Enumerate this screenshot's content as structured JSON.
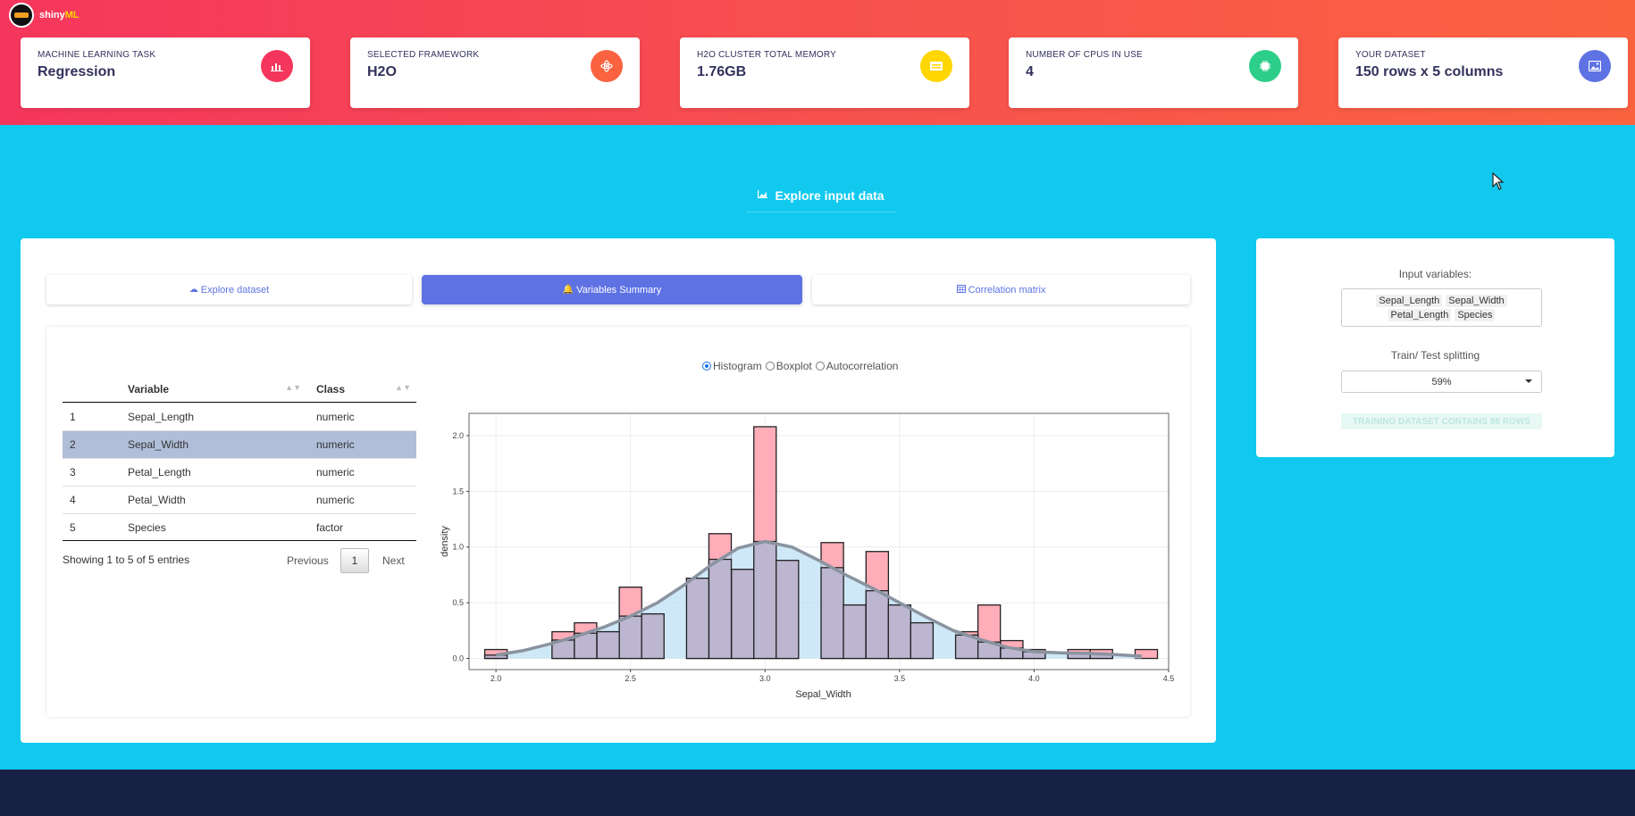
{
  "brand": {
    "name": "shiny",
    "accent": "ML"
  },
  "stats": [
    {
      "label": "MACHINE LEARNING TASK",
      "value": "Regression",
      "icon": "chart-bar-icon",
      "color": "#f5365c"
    },
    {
      "label": "SELECTED FRAMEWORK",
      "value": "H2O",
      "icon": "atom-icon",
      "color": "#fb6340"
    },
    {
      "label": "H2O CLUSTER TOTAL MEMORY",
      "value": "1.76GB",
      "icon": "memory-icon",
      "color": "#ffd600"
    },
    {
      "label": "NUMBER OF CPUS IN USE",
      "value": "4",
      "icon": "cpu-icon",
      "color": "#2dce89"
    },
    {
      "label": "YOUR DATASET",
      "value": "150 rows x 5 columns",
      "icon": "image-icon",
      "color": "#5e72e4"
    }
  ],
  "section": {
    "title": "Explore input data"
  },
  "tabs": [
    {
      "label": "Explore dataset",
      "icon": "cloud-upload-icon"
    },
    {
      "label": "Variables Summary",
      "icon": "bell-icon"
    },
    {
      "label": "Correlation matrix",
      "icon": "calendar-icon"
    }
  ],
  "table": {
    "columns": [
      "Variable",
      "Class"
    ],
    "rows": [
      {
        "idx": "1",
        "variable": "Sepal_Length",
        "class": "numeric"
      },
      {
        "idx": "2",
        "variable": "Sepal_Width",
        "class": "numeric"
      },
      {
        "idx": "3",
        "variable": "Petal_Length",
        "class": "numeric"
      },
      {
        "idx": "4",
        "variable": "Petal_Width",
        "class": "numeric"
      },
      {
        "idx": "5",
        "variable": "Species",
        "class": "factor"
      }
    ],
    "info": "Showing 1 to 5 of 5 entries",
    "prev": "Previous",
    "page": "1",
    "next": "Next"
  },
  "plot_options": {
    "histogram": "Histogram",
    "boxplot": "Boxplot",
    "autocorrelation": "Autocorrelation",
    "selected": "Histogram"
  },
  "chart_data": {
    "type": "bar",
    "xlabel": "Sepal_Width",
    "ylabel": "density",
    "xlim": [
      1.9,
      4.5
    ],
    "ylim": [
      -0.1,
      2.2
    ],
    "xticks": [
      "2.0",
      "2.5",
      "3.0",
      "3.5",
      "4.0",
      "4.5"
    ],
    "yticks": [
      "0.0",
      "0.5",
      "1.0",
      "1.5",
      "2.0"
    ],
    "bin_width": 0.0833,
    "bin_centers": [
      2.0,
      2.083,
      2.167,
      2.25,
      2.333,
      2.417,
      2.5,
      2.583,
      2.667,
      2.75,
      2.833,
      2.917,
      3.0,
      3.083,
      3.167,
      3.25,
      3.333,
      3.417,
      3.5,
      3.583,
      3.667,
      3.75,
      3.833,
      3.917,
      4.0,
      4.083,
      4.167,
      4.25,
      4.333,
      4.417
    ],
    "series": [
      {
        "name": "Histogram",
        "color": "#ffadb8",
        "values": [
          0.08,
          0,
          0,
          0.24,
          0.32,
          0.24,
          0.64,
          0.4,
          0,
          0.72,
          1.12,
          0.8,
          2.08,
          0.88,
          0,
          1.04,
          0.48,
          0.96,
          0.48,
          0.32,
          0,
          0.24,
          0.48,
          0.16,
          0.08,
          0,
          0.08,
          0.08,
          0,
          0.08
        ]
      },
      {
        "name": "Density",
        "color": "#8a93a0",
        "fill": "#bde0f4",
        "x": [
          2.0,
          2.1,
          2.2,
          2.3,
          2.4,
          2.5,
          2.6,
          2.7,
          2.8,
          2.9,
          3.0,
          3.1,
          3.2,
          3.3,
          3.4,
          3.5,
          3.6,
          3.7,
          3.8,
          3.9,
          4.0,
          4.1,
          4.2,
          4.3,
          4.4
        ],
        "values": [
          0.03,
          0.07,
          0.13,
          0.2,
          0.28,
          0.38,
          0.5,
          0.66,
          0.84,
          0.99,
          1.05,
          1.0,
          0.88,
          0.75,
          0.63,
          0.5,
          0.37,
          0.25,
          0.17,
          0.1,
          0.06,
          0.05,
          0.045,
          0.035,
          0.02
        ]
      }
    ]
  },
  "side": {
    "input_label": "Input variables:",
    "inputs": [
      "Sepal_Length",
      "Sepal_Width",
      "Petal_Length",
      "Species"
    ],
    "split_label": "Train/ Test splitting",
    "split_value": "59%",
    "train_info": "TRAINING DATASET CONTAINS 88 ROWS"
  }
}
